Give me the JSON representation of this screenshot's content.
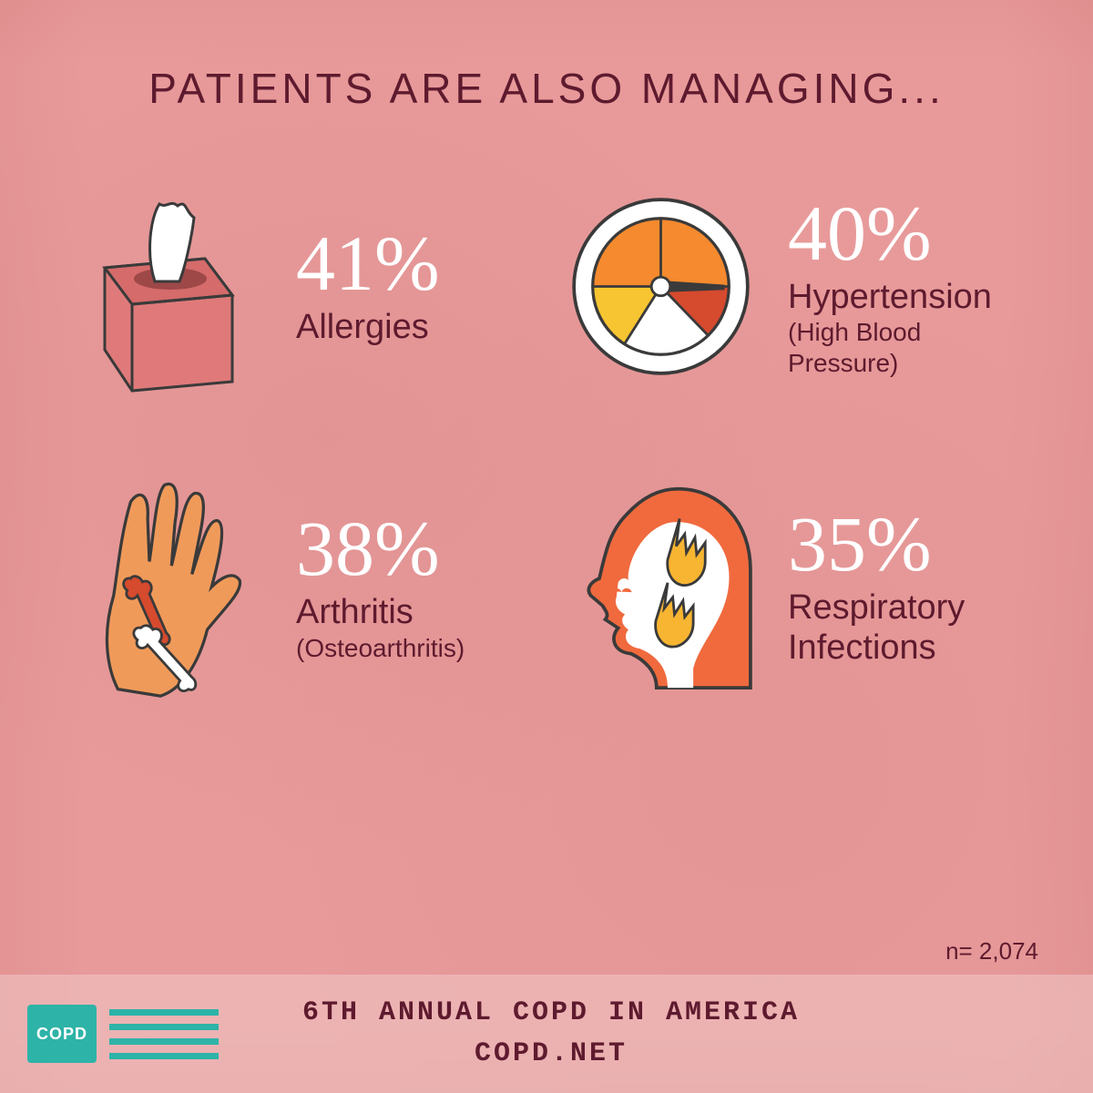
{
  "type": "infographic",
  "background_color": "#e89a9a",
  "title": {
    "text": "PATIENTS ARE ALSO MANAGING...",
    "color": "#5e1a2e",
    "fontsize": 46
  },
  "stats": [
    {
      "percent": "41%",
      "label": "Allergies",
      "sublabel": "",
      "icon": "tissue-box",
      "percent_color": "#ffffff",
      "label_color": "#5e1a2e",
      "percent_fontsize": 86,
      "label_fontsize": 38
    },
    {
      "percent": "40%",
      "label": "Hypertension",
      "sublabel": "(High Blood Pressure)",
      "icon": "pressure-gauge",
      "percent_color": "#ffffff",
      "label_color": "#5e1a2e",
      "percent_fontsize": 86,
      "label_fontsize": 38
    },
    {
      "percent": "38%",
      "label": "Arthritis",
      "sublabel": "(Osteoarthritis)",
      "icon": "hand-bone",
      "percent_color": "#ffffff",
      "label_color": "#5e1a2e",
      "percent_fontsize": 86,
      "label_fontsize": 38
    },
    {
      "percent": "35%",
      "label": "Respiratory Infections",
      "sublabel": "",
      "icon": "head-fire",
      "percent_color": "#ffffff",
      "label_color": "#5e1a2e",
      "percent_fontsize": 86,
      "label_fontsize": 38,
      "multiline": true
    }
  ],
  "icon_colors": {
    "tissue_box_fill": "#e07a7a",
    "tissue_box_top": "#d56b6b",
    "tissue_white": "#ffffff",
    "tissue_outline": "#3a3a3a",
    "gauge_ring": "#ffffff",
    "gauge_orange": "#f58a2e",
    "gauge_red": "#d64a2e",
    "gauge_yellow": "#f7c531",
    "gauge_outline": "#3a3a3a",
    "hand_fill": "#f09a5a",
    "hand_outline": "#3a3a3a",
    "bone_red": "#d64a2e",
    "bone_white": "#ffffff",
    "head_fill": "#f06a3e",
    "head_white": "#ffffff",
    "head_outline": "#3a3a3a",
    "flame_yellow": "#f7b531"
  },
  "sample_size": {
    "text": "n= 2,074",
    "color": "#5e1a2e",
    "fontsize": 26
  },
  "footer": {
    "background_color": "rgba(240,200,200,0.55)",
    "line1": "6TH ANNUAL COPD IN AMERICA",
    "line2": "COPD.NET",
    "text_color": "#5e1a2e",
    "logo_badge_text": "COPD",
    "logo_color": "#2eb3a8"
  }
}
